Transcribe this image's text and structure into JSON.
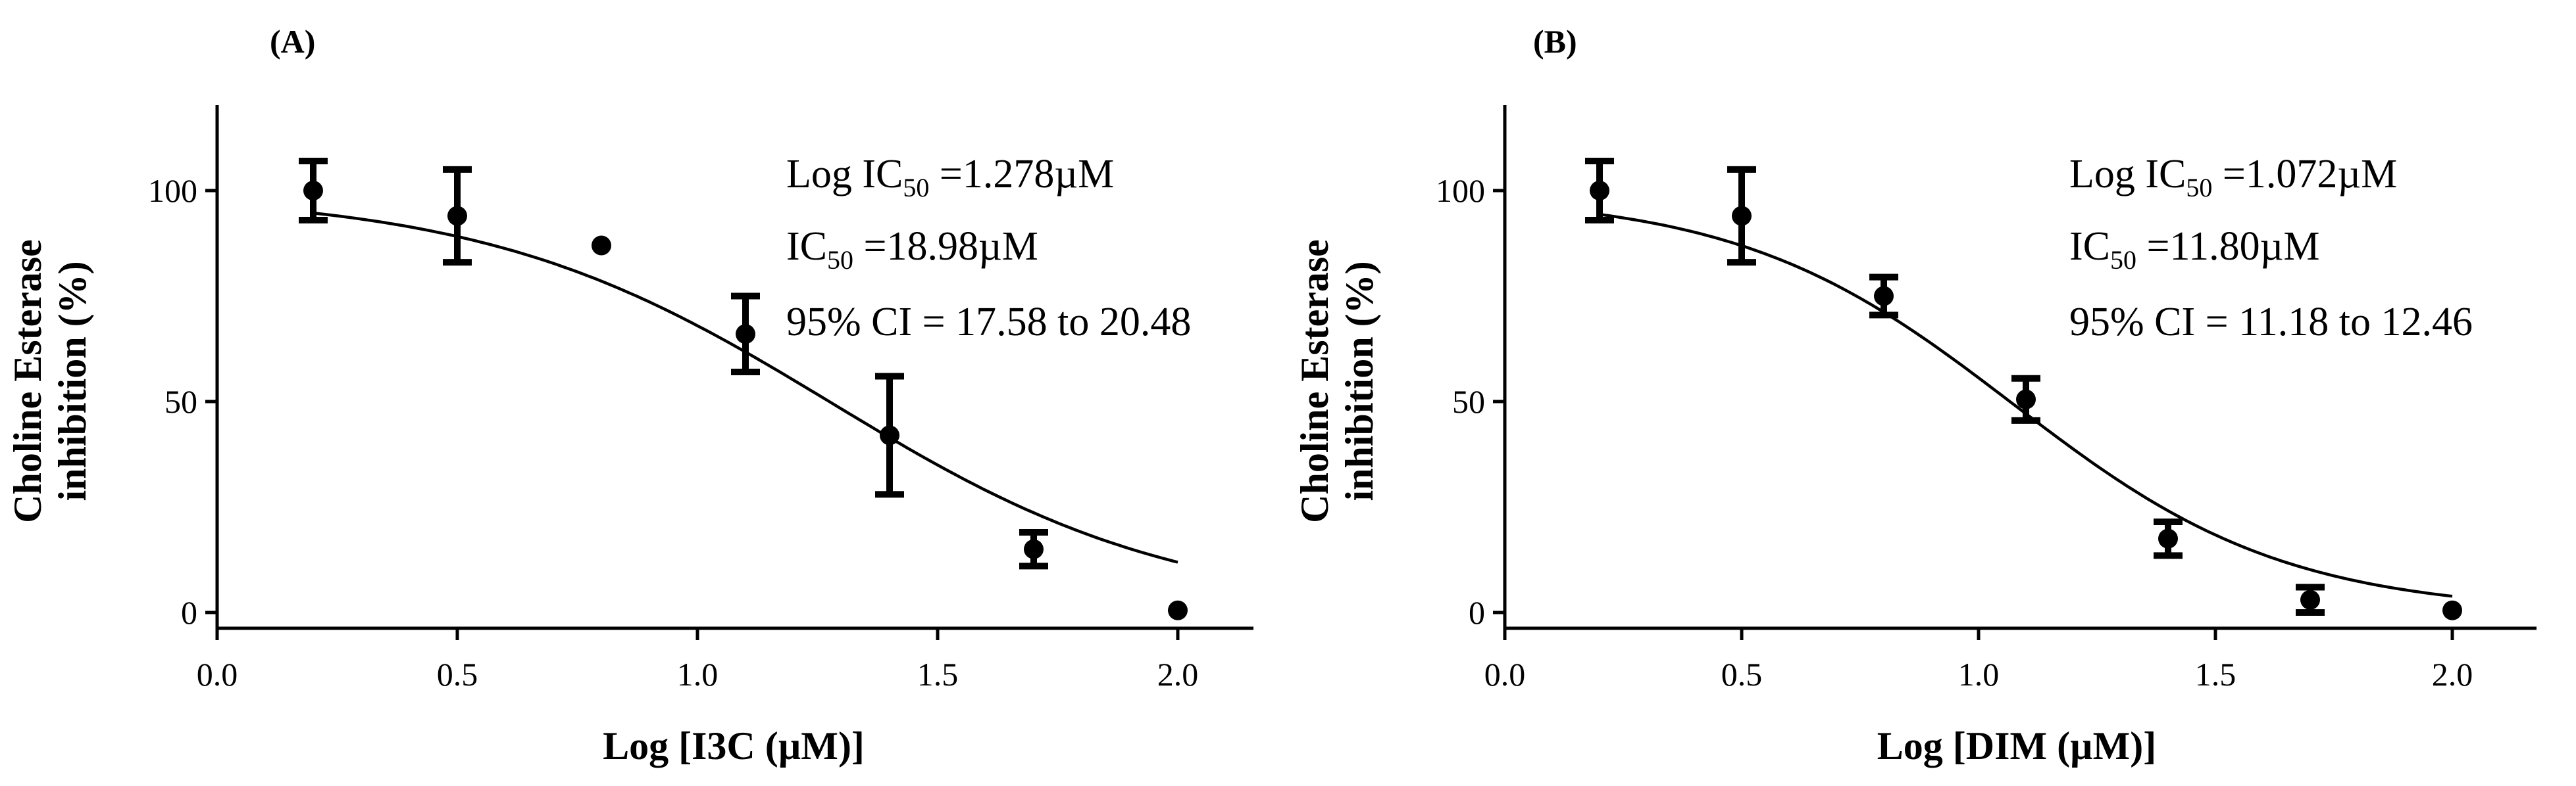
{
  "chart_data": [
    {
      "type": "scatter",
      "panel_label": "(A)",
      "xlabel": "Log [I3C (µM)]",
      "ylabel_lines": [
        "Choline Esterase",
        "inhibition (%)"
      ],
      "xlim": [
        0,
        2.2
      ],
      "ylim": [
        0,
        120
      ],
      "xticks": [
        0.0,
        0.5,
        1.0,
        1.5,
        2.0
      ],
      "xtick_labels": [
        "0.0",
        "0.5",
        "1.0",
        "1.5",
        "2.0"
      ],
      "yticks": [
        0,
        50,
        100
      ],
      "ytick_labels": [
        "0",
        "50",
        "100"
      ],
      "annotation": {
        "line1_prefix": "Log IC",
        "line1_sub": "50",
        "line1_suffix": " =1.278µM",
        "line2_prefix": "IC",
        "line2_sub": "50",
        "line2_suffix": " =18.98µM",
        "line3": "95% CI = 17.58 to 20.48"
      },
      "points": [
        {
          "x": 0.2,
          "y": 100,
          "err": 7
        },
        {
          "x": 0.5,
          "y": 94,
          "err": 11
        },
        {
          "x": 0.8,
          "y": 87,
          "err": 0
        },
        {
          "x": 1.1,
          "y": 66,
          "err": 9
        },
        {
          "x": 1.4,
          "y": 42,
          "err": 14
        },
        {
          "x": 1.7,
          "y": 15,
          "err": 4
        },
        {
          "x": 2.0,
          "y": 0.5,
          "err": 0
        }
      ],
      "fit": {
        "top": 99.5,
        "bottom": 0,
        "logIC50": 1.278,
        "hill": -1.2,
        "x_range": [
          0.2,
          2.0
        ]
      }
    },
    {
      "type": "scatter",
      "panel_label": "(B)",
      "xlabel": "Log [DIM (µM)]",
      "ylabel_lines": [
        "Choline Esterase",
        "inhibition (%)"
      ],
      "xlim": [
        0,
        2.2
      ],
      "ylim": [
        0,
        120
      ],
      "xticks": [
        0.0,
        0.5,
        1.0,
        1.5,
        2.0
      ],
      "xtick_labels": [
        "0.0",
        "0.5",
        "1.0",
        "1.5",
        "2.0"
      ],
      "yticks": [
        0,
        50,
        100
      ],
      "ytick_labels": [
        "0",
        "50",
        "100"
      ],
      "annotation": {
        "line1_prefix": "Log IC",
        "line1_sub": "50",
        "line1_suffix": " =1.072µM",
        "line2_prefix": "IC",
        "line2_sub": "50",
        "line2_suffix": " =11.80µM",
        "line3": "95% CI = 11.18 to 12.46"
      },
      "points": [
        {
          "x": 0.2,
          "y": 100,
          "err": 7
        },
        {
          "x": 0.5,
          "y": 94,
          "err": 11
        },
        {
          "x": 0.8,
          "y": 75,
          "err": 4.5
        },
        {
          "x": 1.1,
          "y": 50.5,
          "err": 5
        },
        {
          "x": 1.4,
          "y": 17.5,
          "err": 4
        },
        {
          "x": 1.7,
          "y": 3,
          "err": 3
        },
        {
          "x": 2.0,
          "y": 0.5,
          "err": 0
        }
      ],
      "fit": {
        "top": 99,
        "bottom": 0,
        "logIC50": 1.072,
        "hill": -1.5,
        "x_range": [
          0.2,
          2.0
        ]
      }
    }
  ]
}
